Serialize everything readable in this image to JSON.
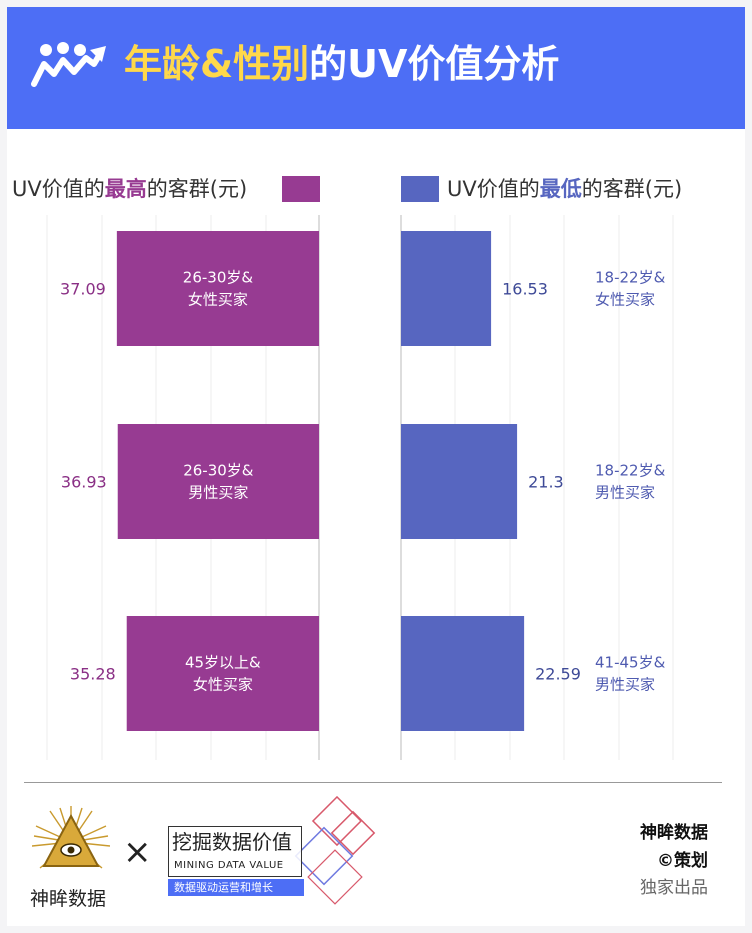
{
  "header": {
    "icon": "people-growth-icon",
    "title_highlight": "年龄&性别",
    "title_rest": "的UV价值分析"
  },
  "left_panel": {
    "legend_prefix": "UV价值的",
    "legend_highlight": "最高",
    "legend_suffix": "的客群(元)",
    "color": "#973b92"
  },
  "right_panel": {
    "legend_prefix": "UV价值的",
    "legend_highlight": "最低",
    "legend_suffix": "的客群(元)",
    "color": "#5766c0"
  },
  "chart_data": [
    {
      "type": "bar",
      "orientation": "horizontal",
      "direction": "leftward",
      "categories": [
        "26-30岁&\n女性买家",
        "26-30岁&\n男性买家",
        "45岁以上&\n女性买家"
      ],
      "values": [
        37.09,
        36.93,
        35.28
      ],
      "value_labels": [
        "37.09",
        "36.93",
        "35.28"
      ],
      "color": "#973b92",
      "grid": true
    },
    {
      "type": "bar",
      "orientation": "horizontal",
      "direction": "rightward",
      "categories": [
        "18-22岁&\n女性买家",
        "18-22岁&\n男性买家",
        "41-45岁&\n男性买家"
      ],
      "values": [
        16.53,
        21.3,
        22.59
      ],
      "value_labels": [
        "16.53",
        "21.3",
        "22.59"
      ],
      "color": "#5766c0",
      "grid": true
    }
  ],
  "footer": {
    "logo1_text": "神眸数据",
    "times_symbol": "×",
    "logo2_title": "挖掘数据价值",
    "logo2_sub": "MINING DATA VALUE",
    "logo2_tag": "数据驱动运营和增长",
    "credit_line1": "神眸数据",
    "credit_line2": "©策划",
    "credit_line3": "独家出品"
  }
}
